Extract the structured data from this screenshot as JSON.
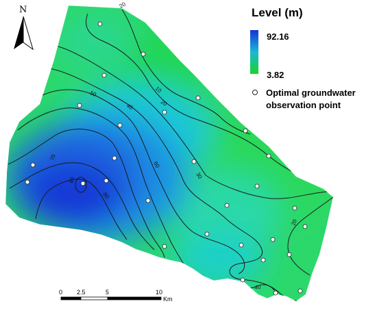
{
  "north_label": "N",
  "legend": {
    "title": "Level (m)",
    "max_value": "92.16",
    "min_value": "3.82",
    "color_high": "#1433d8",
    "color_low": "#19d428",
    "observation_label_line1": "Optimal groundwater",
    "observation_label_line2": "observation point"
  },
  "contour_labels": [
    "20",
    "10",
    "20",
    "40",
    "50",
    "30",
    "60",
    "70",
    "80",
    "90",
    "20",
    "40"
  ],
  "scale_bar": {
    "ticks": [
      "0",
      "2.5",
      "5",
      "10"
    ],
    "unit": "Km"
  }
}
